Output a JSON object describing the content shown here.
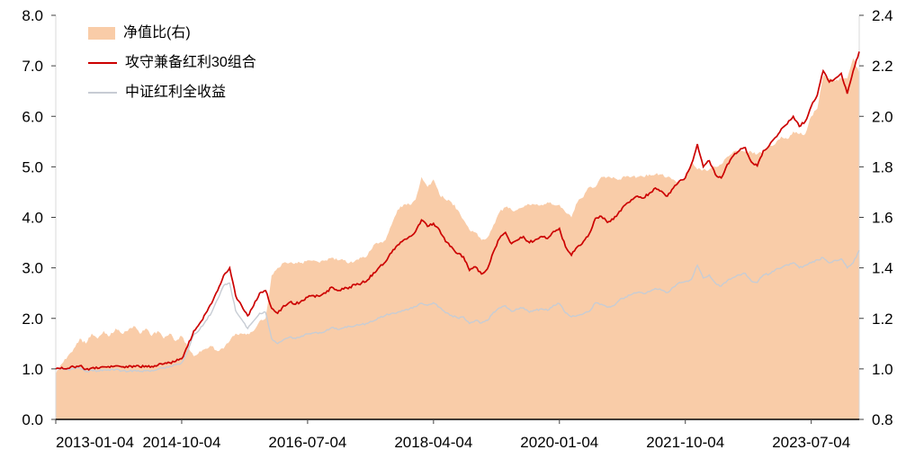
{
  "chart_data": {
    "type": "line",
    "title": "",
    "legend_position": "top-left",
    "grid": false,
    "left_axis": {
      "min": 0.0,
      "max": 8.0,
      "step": 1.0,
      "labels": [
        "0.0",
        "1.0",
        "2.0",
        "3.0",
        "4.0",
        "5.0",
        "6.0",
        "7.0",
        "8.0"
      ]
    },
    "right_axis": {
      "min": 0.8,
      "max": 2.4,
      "step": 0.2,
      "labels": [
        "0.8",
        "1.0",
        "1.2",
        "1.4",
        "1.6",
        "1.8",
        "2.0",
        "2.2",
        "2.4"
      ]
    },
    "x_axis": {
      "tick_labels": [
        "2013-01-04",
        "2014-10-04",
        "2016-07-04",
        "2018-04-04",
        "2020-01-04",
        "2021-10-04",
        "2023-07-04"
      ],
      "tick_indices": [
        0,
        21,
        42,
        63,
        84,
        105,
        126
      ],
      "points_are": "monthly 2013-01 .. 2024-03"
    },
    "series": [
      {
        "name": "净值比(右)",
        "type": "area",
        "axis": "right",
        "color": "#F9CCA8",
        "values": [
          0.98,
          1.02,
          1.05,
          1.08,
          1.12,
          1.1,
          1.14,
          1.12,
          1.15,
          1.13,
          1.16,
          1.14,
          1.15,
          1.17,
          1.14,
          1.16,
          1.13,
          1.15,
          1.12,
          1.14,
          1.11,
          1.13,
          1.09,
          1.05,
          1.07,
          1.08,
          1.09,
          1.07,
          1.08,
          1.11,
          1.14,
          1.14,
          1.14,
          1.15,
          1.19,
          1.2,
          1.37,
          1.4,
          1.42,
          1.42,
          1.42,
          1.42,
          1.43,
          1.43,
          1.42,
          1.43,
          1.44,
          1.43,
          1.43,
          1.42,
          1.43,
          1.44,
          1.45,
          1.49,
          1.5,
          1.51,
          1.57,
          1.63,
          1.65,
          1.65,
          1.67,
          1.76,
          1.72,
          1.75,
          1.69,
          1.67,
          1.66,
          1.63,
          1.59,
          1.55,
          1.54,
          1.51,
          1.52,
          1.57,
          1.62,
          1.64,
          1.63,
          1.63,
          1.64,
          1.65,
          1.65,
          1.65,
          1.66,
          1.65,
          1.65,
          1.62,
          1.6,
          1.66,
          1.68,
          1.72,
          1.72,
          1.76,
          1.76,
          1.76,
          1.75,
          1.76,
          1.76,
          1.76,
          1.76,
          1.77,
          1.77,
          1.77,
          1.76,
          1.75,
          1.74,
          1.75,
          1.82,
          1.79,
          1.79,
          1.79,
          1.8,
          1.81,
          1.84,
          1.86,
          1.86,
          1.86,
          1.86,
          1.85,
          1.86,
          1.88,
          1.89,
          1.92,
          1.91,
          1.94,
          1.93,
          1.93,
          2.0,
          2.03,
          2.16,
          2.15,
          2.14,
          2.15,
          2.15,
          2.23,
          2.17
        ]
      },
      {
        "name": "攻守兼备红利30组合",
        "type": "line",
        "axis": "left",
        "color": "#CC0000",
        "values": [
          1.0,
          1.03,
          1.01,
          1.04,
          1.06,
          0.99,
          1.02,
          1.01,
          1.04,
          1.03,
          1.06,
          1.04,
          1.03,
          1.06,
          1.04,
          1.06,
          1.05,
          1.07,
          1.1,
          1.12,
          1.15,
          1.2,
          1.45,
          1.75,
          1.9,
          2.1,
          2.3,
          2.55,
          2.85,
          3.0,
          2.45,
          2.25,
          2.05,
          2.25,
          2.5,
          2.55,
          2.2,
          2.1,
          2.25,
          2.32,
          2.28,
          2.35,
          2.42,
          2.45,
          2.44,
          2.5,
          2.62,
          2.55,
          2.58,
          2.62,
          2.66,
          2.7,
          2.76,
          2.9,
          3.02,
          3.12,
          3.3,
          3.45,
          3.55,
          3.62,
          3.72,
          3.95,
          3.82,
          3.88,
          3.75,
          3.52,
          3.42,
          3.28,
          3.22,
          2.95,
          3.02,
          2.88,
          2.98,
          3.32,
          3.58,
          3.7,
          3.48,
          3.55,
          3.62,
          3.5,
          3.56,
          3.62,
          3.58,
          3.72,
          3.78,
          3.42,
          3.25,
          3.42,
          3.52,
          3.68,
          3.98,
          4.02,
          3.9,
          3.96,
          4.12,
          4.25,
          4.35,
          4.42,
          4.38,
          4.48,
          4.58,
          4.52,
          4.42,
          4.58,
          4.72,
          4.78,
          5.05,
          5.45,
          5.0,
          5.12,
          4.85,
          4.78,
          5.05,
          5.22,
          5.32,
          5.38,
          5.1,
          5.02,
          5.32,
          5.42,
          5.58,
          5.75,
          5.85,
          6.0,
          5.8,
          5.9,
          6.2,
          6.42,
          6.9,
          6.68,
          6.75,
          6.85,
          6.45,
          6.9,
          7.28
        ]
      },
      {
        "name": "中证红利全收益",
        "type": "line",
        "axis": "left",
        "color": "#C7CCD4",
        "values": [
          1.0,
          1.01,
          0.99,
          1.0,
          1.02,
          0.95,
          0.97,
          0.96,
          0.98,
          0.97,
          0.99,
          0.96,
          0.95,
          0.97,
          0.95,
          0.96,
          0.97,
          0.99,
          1.02,
          1.05,
          1.08,
          1.12,
          1.35,
          1.68,
          1.78,
          1.95,
          2.12,
          2.38,
          2.65,
          2.7,
          2.15,
          1.98,
          1.8,
          1.95,
          2.1,
          2.12,
          1.6,
          1.5,
          1.58,
          1.63,
          1.6,
          1.65,
          1.69,
          1.71,
          1.72,
          1.75,
          1.82,
          1.78,
          1.81,
          1.84,
          1.86,
          1.88,
          1.9,
          1.95,
          2.01,
          2.06,
          2.1,
          2.12,
          2.15,
          2.19,
          2.23,
          2.3,
          2.26,
          2.31,
          2.22,
          2.11,
          2.06,
          2.01,
          2.03,
          1.9,
          1.96,
          1.91,
          1.96,
          2.12,
          2.21,
          2.25,
          2.14,
          2.18,
          2.21,
          2.12,
          2.16,
          2.19,
          2.16,
          2.26,
          2.29,
          2.11,
          2.03,
          2.06,
          2.09,
          2.14,
          2.31,
          2.28,
          2.22,
          2.25,
          2.36,
          2.42,
          2.47,
          2.51,
          2.49,
          2.53,
          2.59,
          2.56,
          2.51,
          2.62,
          2.71,
          2.73,
          2.77,
          3.05,
          2.8,
          2.86,
          2.7,
          2.64,
          2.75,
          2.81,
          2.86,
          2.89,
          2.74,
          2.71,
          2.86,
          2.88,
          2.96,
          3.0,
          3.06,
          3.1,
          3.0,
          3.05,
          3.1,
          3.16,
          3.2,
          3.1,
          3.15,
          3.18,
          3.0,
          3.1,
          3.35
        ]
      }
    ],
    "style": {
      "axis_line_color": "#000000",
      "tick_color": "#404040",
      "label_color": "#000000",
      "spine_color": "#d9d9d9"
    }
  }
}
